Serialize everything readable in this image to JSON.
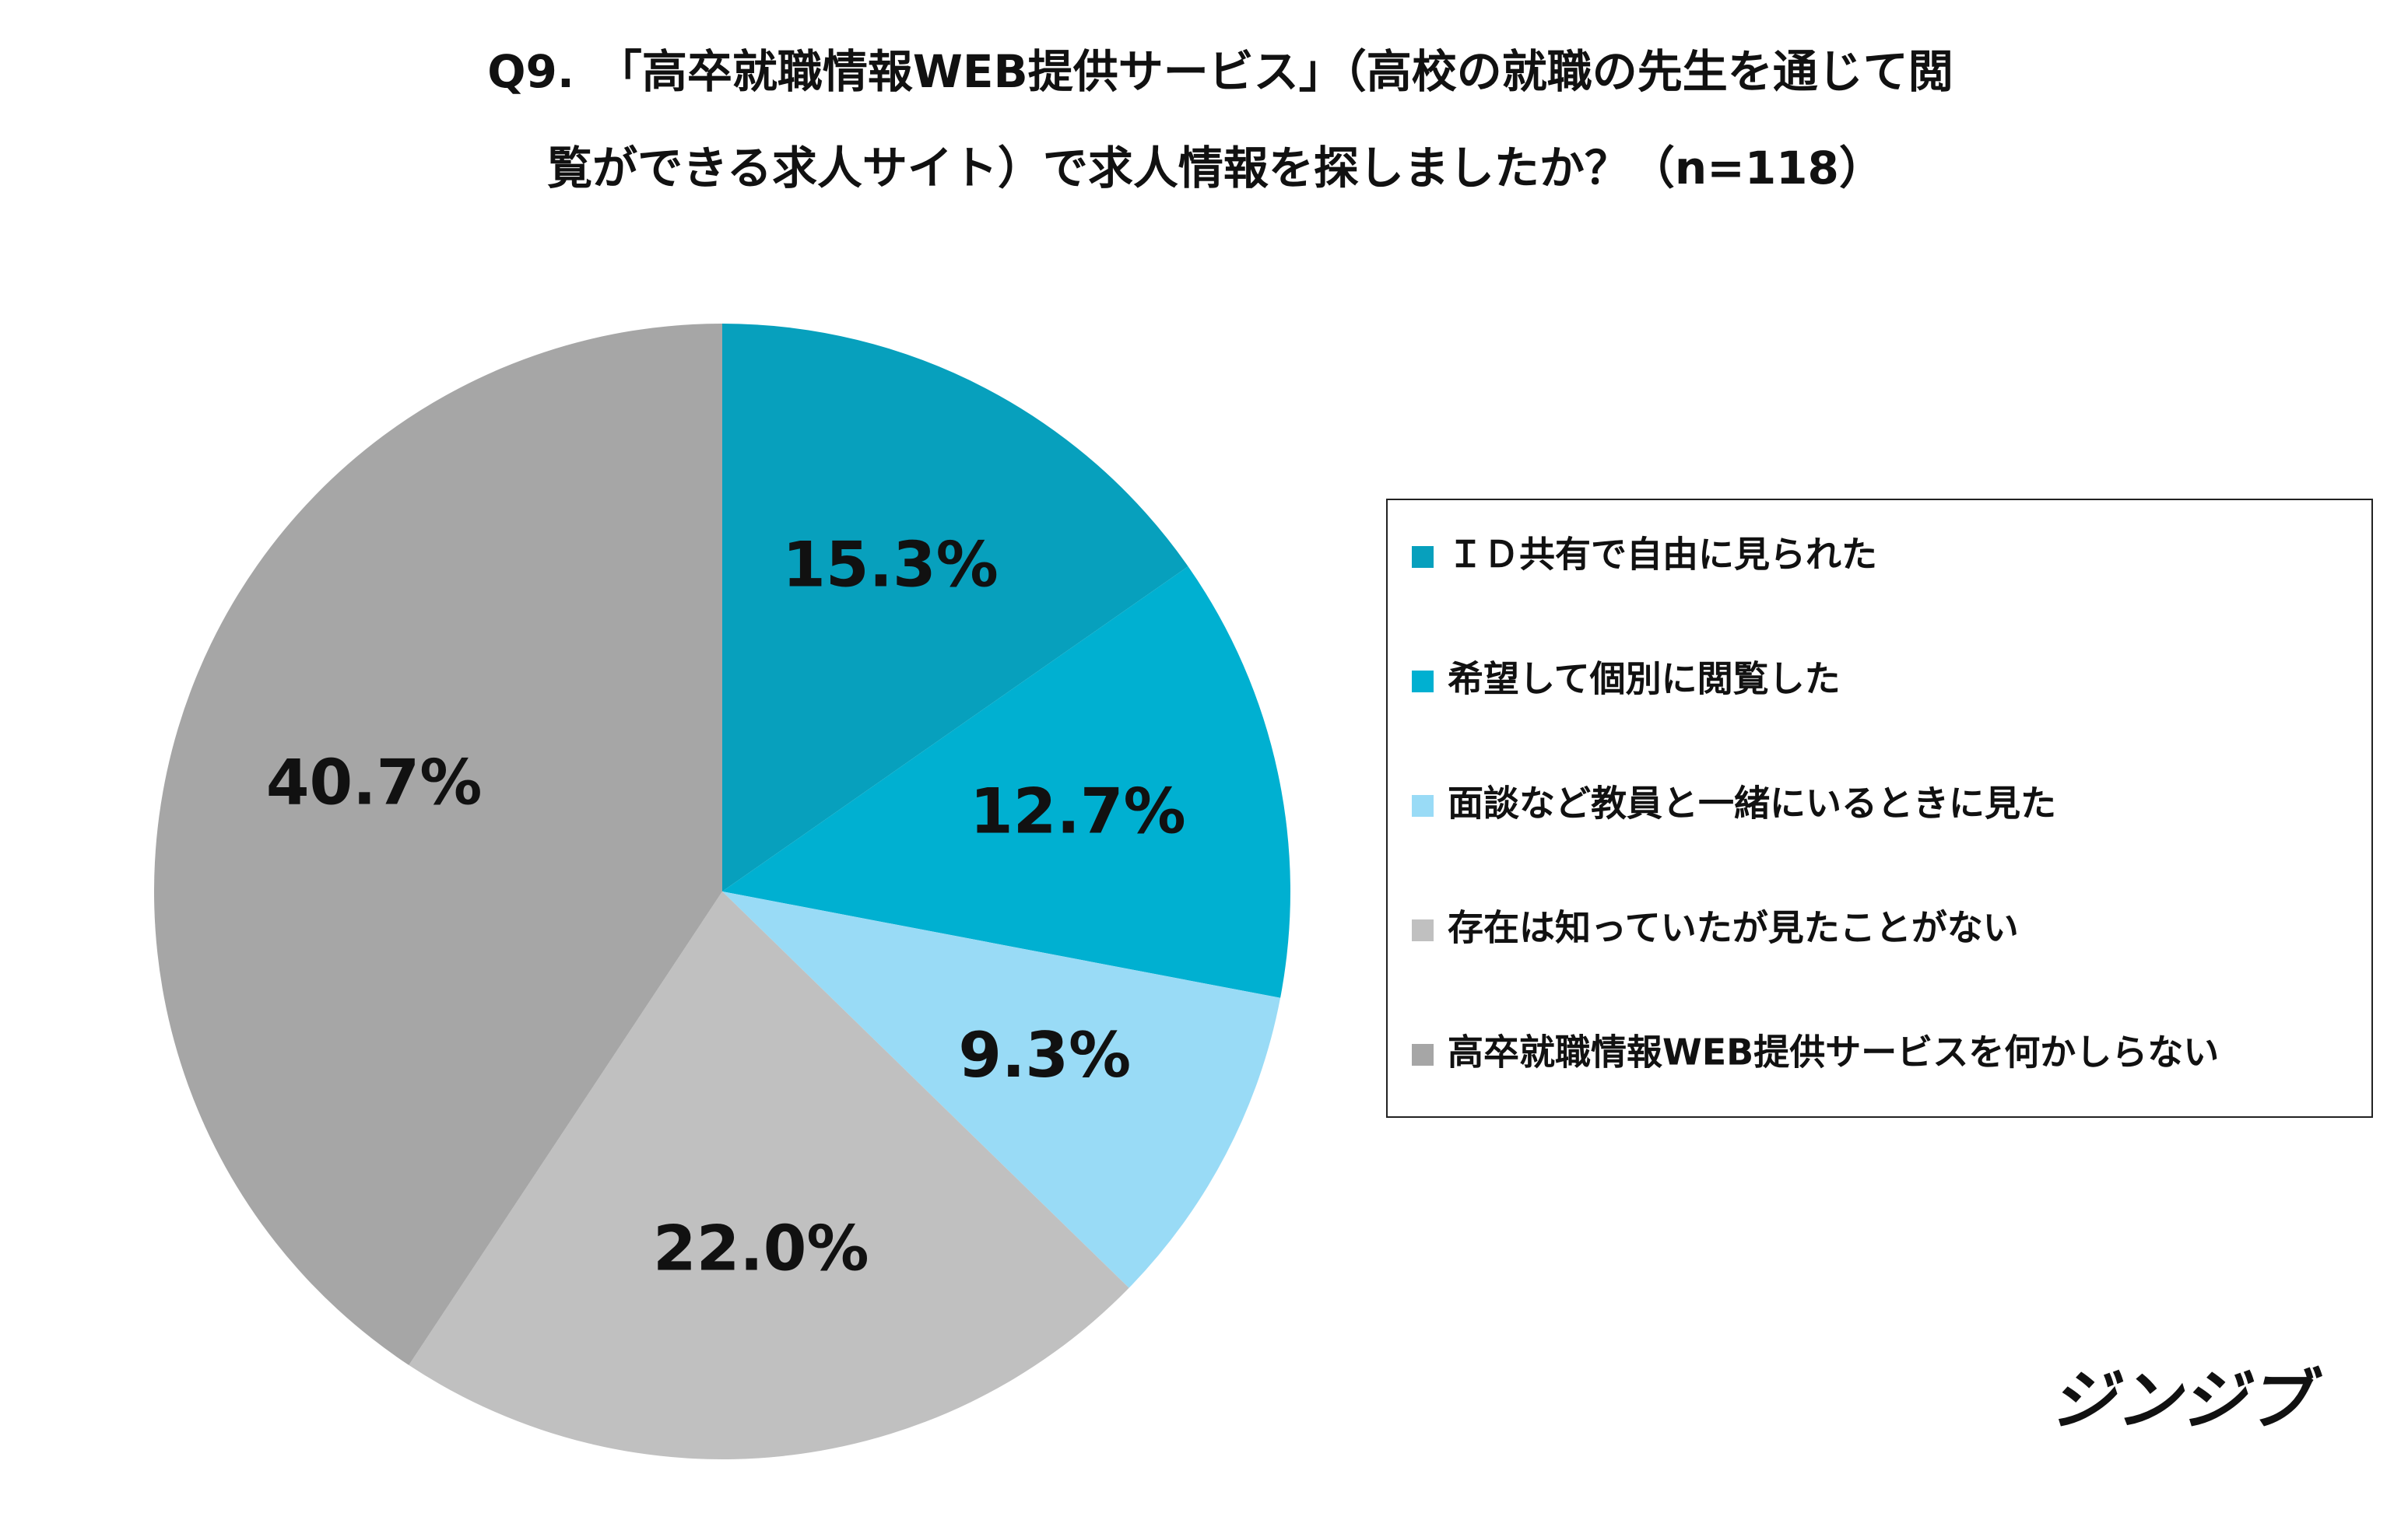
{
  "chart_data": {
    "type": "pie",
    "title": [
      "Q9.　「高卒就職情報WEB提供サービス」（高校の就職の先生を通じて閲",
      "覧ができる求人サイト）で求人情報を探しましたか？（n=118）"
    ],
    "categories": [
      "ＩＤ共有で自由に見られた",
      "希望して個別に閲覧した",
      "面談など教員と一緒にいるときに見た",
      "存在は知っていたが見たことがない",
      "高卒就職情報WEB提供サービスを何かしらない"
    ],
    "values": [
      15.3,
      12.7,
      9.3,
      22.0,
      40.7
    ],
    "value_labels": [
      "15.3%",
      "12.7%",
      "9.3%",
      "22.0%",
      "40.7%"
    ],
    "colors": [
      "#07a0bd",
      "#00b0d1",
      "#99dbf6",
      "#c0c0c0",
      "#a6a6a6"
    ],
    "legend": "right",
    "logo": "ジンジブ"
  }
}
